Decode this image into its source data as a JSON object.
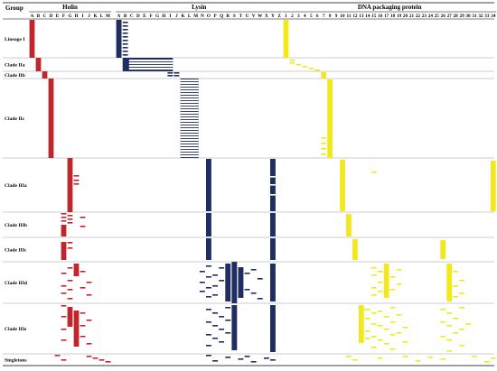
{
  "header": {
    "group": "Group",
    "holin": "Holin",
    "lysin": "Lysin",
    "dna": "DNA packaging protein"
  },
  "colors": {
    "holin": "#c0272d",
    "lysin": "#1f2e5e",
    "dna": "#f2e81a",
    "grid": "#9a9a9a",
    "text": "#000000"
  },
  "holin_columns": [
    "A",
    "B",
    "C",
    "D",
    "E",
    "F",
    "G",
    "H",
    "I",
    "J",
    "K",
    "L",
    "M"
  ],
  "lysin_columns": [
    "A",
    "B",
    "C",
    "D",
    "E",
    "F",
    "G",
    "H",
    "I",
    "J",
    "K",
    "L",
    "M",
    "N",
    "O",
    "P",
    "Q",
    "R",
    "S",
    "T",
    "U",
    "V",
    "W",
    "X",
    "Y",
    "Z"
  ],
  "dna_columns": [
    "1",
    "2",
    "3",
    "4",
    "5",
    "6",
    "7",
    "8",
    "9",
    "10",
    "11",
    "12",
    "13",
    "14",
    "15",
    "16",
    "17",
    "18",
    "19",
    "20",
    "21",
    "22",
    "23",
    "24",
    "25",
    "26",
    "27",
    "28",
    "29",
    "30",
    "31",
    "32",
    "33",
    "34"
  ],
  "groups": [
    {
      "name": "Lineage I",
      "holin_cols": [
        "A"
      ],
      "lysin_cols": [
        "A",
        "B"
      ],
      "dna_cols": [
        "1"
      ]
    },
    {
      "name": "Clade IIa",
      "holin_cols": [
        "B"
      ],
      "lysin_cols": [
        "B",
        "C",
        "D",
        "E",
        "F",
        "G",
        "H",
        "I"
      ],
      "dna_cols": [
        "1",
        "2",
        "3",
        "4",
        "5",
        "6"
      ]
    },
    {
      "name": "Clade IIb",
      "holin_cols": [
        "C"
      ],
      "lysin_cols": [
        "I",
        "J"
      ],
      "dna_cols": [
        "7"
      ]
    },
    {
      "name": "Clade IIc",
      "holin_cols": [
        "D"
      ],
      "lysin_cols": [
        "L",
        "M",
        "N"
      ],
      "dna_cols": [
        "7",
        "8"
      ]
    },
    {
      "name": "Clade IIIa",
      "holin_cols": [
        "G",
        "H"
      ],
      "lysin_cols": [
        "P",
        "Z"
      ],
      "dna_cols": [
        "10",
        "15",
        "34"
      ]
    },
    {
      "name": "Clade IIIb",
      "holin_cols": [
        "F",
        "G",
        "H",
        "I",
        "J"
      ],
      "lysin_cols": [
        "P",
        "Z"
      ],
      "dna_cols": [
        "11"
      ]
    },
    {
      "name": "Clade IIIc",
      "holin_cols": [
        "F",
        "G"
      ],
      "lysin_cols": [
        "P",
        "Z"
      ],
      "dna_cols": [
        "12",
        "26"
      ]
    },
    {
      "name": "Clade IIId",
      "holin_cols": [
        "F",
        "G",
        "H",
        "I",
        "J",
        "K"
      ],
      "lysin_cols": [
        "N",
        "O",
        "P",
        "Q",
        "R",
        "S",
        "T",
        "U",
        "V",
        "W",
        "Z"
      ],
      "dna_cols": [
        "15",
        "16",
        "17",
        "18",
        "19",
        "27",
        "28",
        "29"
      ]
    },
    {
      "name": "Clade IIIe",
      "holin_cols": [
        "F",
        "G",
        "H",
        "I",
        "J"
      ],
      "lysin_cols": [
        "N",
        "O",
        "P",
        "Q",
        "R",
        "S",
        "Z"
      ],
      "dna_cols": [
        "13",
        "14",
        "15",
        "16",
        "17",
        "18",
        "19",
        "20",
        "26",
        "27",
        "28",
        "29",
        "30"
      ]
    },
    {
      "name": "Singletons",
      "holin_cols": [
        "E",
        "F",
        "J",
        "K",
        "L",
        "M"
      ],
      "lysin_cols": [
        "O",
        "P",
        "R",
        "T",
        "U",
        "V",
        "X",
        "Y",
        "Z"
      ],
      "dna_cols": [
        "11",
        "12",
        "16",
        "20",
        "22",
        "24",
        "26",
        "31",
        "33",
        "34"
      ]
    }
  ]
}
